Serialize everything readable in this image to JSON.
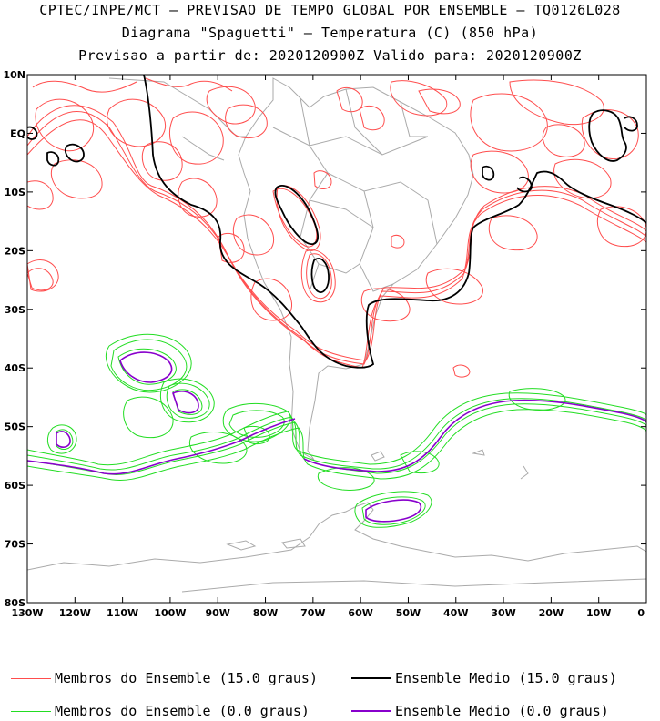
{
  "titles": {
    "line1": "CPTEC/INPE/MCT — PREVISAO DE TEMPO GLOBAL POR ENSEMBLE — TQ0126L028",
    "line2": "Diagrama \"Spaguetti\" — Temperatura (C) (850 hPa)",
    "line3": "Previsao a partir de: 2020120900Z  Valido para: 2020120900Z"
  },
  "map": {
    "lon_range": [
      -130,
      0
    ],
    "lat_range": [
      -80,
      10
    ],
    "lat_ticks": [
      "10N",
      "EQ",
      "10S",
      "20S",
      "30S",
      "40S",
      "50S",
      "60S",
      "70S",
      "80S"
    ],
    "lon_ticks": [
      "130W",
      "120W",
      "110W",
      "100W",
      "90W",
      "80W",
      "70W",
      "60W",
      "50W",
      "40W",
      "30W",
      "20W",
      "10W",
      "0"
    ]
  },
  "colors": {
    "members_15": "#ff4d4d",
    "mean_15": "#000000",
    "members_0": "#22dd22",
    "mean_0": "#8800cc",
    "coast": "#aaaaaa"
  },
  "legend": {
    "members_15": "Membros do Ensemble (15.0 graus)",
    "mean_15": "Ensemble Medio (15.0 graus)",
    "members_0": "Membros do Ensemble (0.0 graus)",
    "mean_0": "Ensemble Medio (0.0 graus)"
  }
}
